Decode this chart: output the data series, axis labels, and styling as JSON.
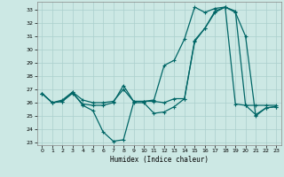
{
  "xlabel": "Humidex (Indice chaleur)",
  "bg_color": "#cce8e4",
  "grid_color": "#aacfcc",
  "line_color": "#006666",
  "xlim": [
    -0.5,
    23.5
  ],
  "ylim": [
    22.8,
    33.6
  ],
  "yticks": [
    23,
    24,
    25,
    26,
    27,
    28,
    29,
    30,
    31,
    32,
    33
  ],
  "xticks": [
    0,
    1,
    2,
    3,
    4,
    5,
    6,
    7,
    8,
    9,
    10,
    11,
    12,
    13,
    14,
    15,
    16,
    17,
    18,
    19,
    20,
    21,
    22,
    23
  ],
  "line1_x": [
    0,
    1,
    2,
    3,
    4,
    5,
    6,
    7,
    8,
    9,
    10,
    11,
    12,
    13,
    14,
    15,
    16,
    17,
    18,
    19,
    20,
    21,
    22,
    23
  ],
  "line1_y": [
    26.7,
    26.0,
    26.1,
    26.8,
    25.8,
    25.4,
    23.8,
    23.1,
    23.2,
    26.0,
    26.0,
    25.2,
    25.3,
    25.7,
    26.3,
    30.7,
    31.6,
    32.8,
    33.2,
    32.8,
    31.0,
    25.0,
    25.6,
    25.7
  ],
  "line2_x": [
    0,
    1,
    2,
    3,
    4,
    5,
    6,
    7,
    8,
    9,
    10,
    11,
    12,
    13,
    14,
    15,
    16,
    17,
    18,
    19,
    20,
    21,
    22,
    23
  ],
  "line2_y": [
    26.7,
    26.0,
    26.1,
    26.7,
    25.9,
    25.8,
    25.8,
    26.0,
    27.3,
    26.1,
    26.1,
    26.2,
    28.8,
    29.2,
    30.8,
    33.2,
    32.8,
    33.1,
    33.2,
    25.9,
    25.8,
    25.8,
    25.8,
    25.8
  ],
  "line3_x": [
    0,
    1,
    2,
    3,
    4,
    5,
    6,
    7,
    8,
    9,
    10,
    11,
    12,
    13,
    14,
    15,
    16,
    17,
    18,
    19,
    20,
    21,
    22,
    23
  ],
  "line3_y": [
    26.7,
    26.0,
    26.2,
    26.8,
    26.2,
    26.0,
    26.0,
    26.1,
    27.0,
    26.1,
    26.1,
    26.1,
    26.0,
    26.3,
    26.3,
    30.6,
    31.6,
    32.9,
    33.2,
    32.9,
    25.8,
    25.1,
    25.6,
    25.7
  ]
}
